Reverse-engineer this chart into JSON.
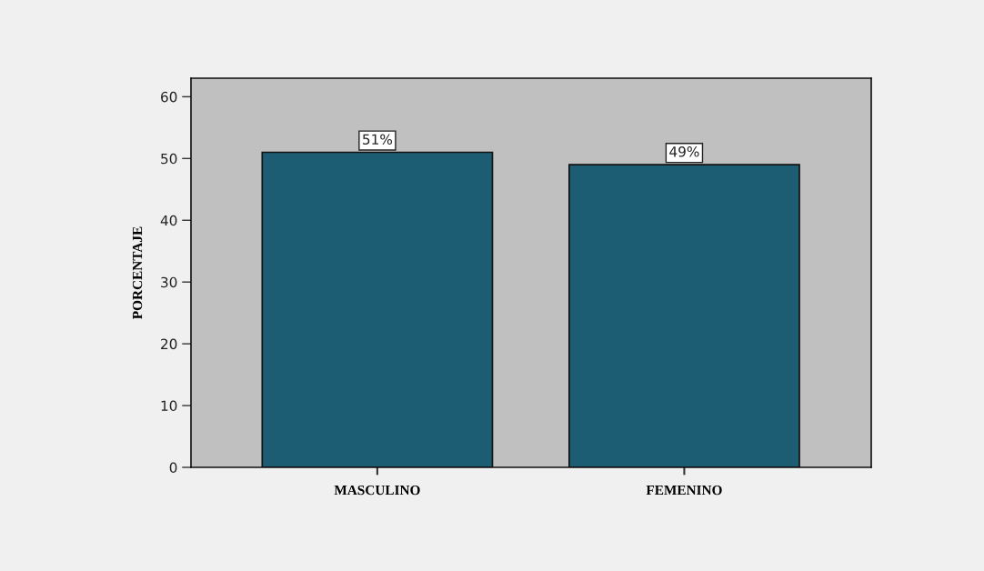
{
  "chart_data": {
    "type": "bar",
    "categories": [
      "MASCULINO",
      "FEMENINO"
    ],
    "values": [
      51,
      49
    ],
    "value_labels": [
      "51%",
      "49%"
    ],
    "color": "#1c5d74",
    "ylabel": "PORCENTAJE",
    "ylim": [
      0,
      63
    ],
    "yticks": [
      0,
      10,
      20,
      30,
      40,
      50,
      60
    ],
    "grid": false
  }
}
